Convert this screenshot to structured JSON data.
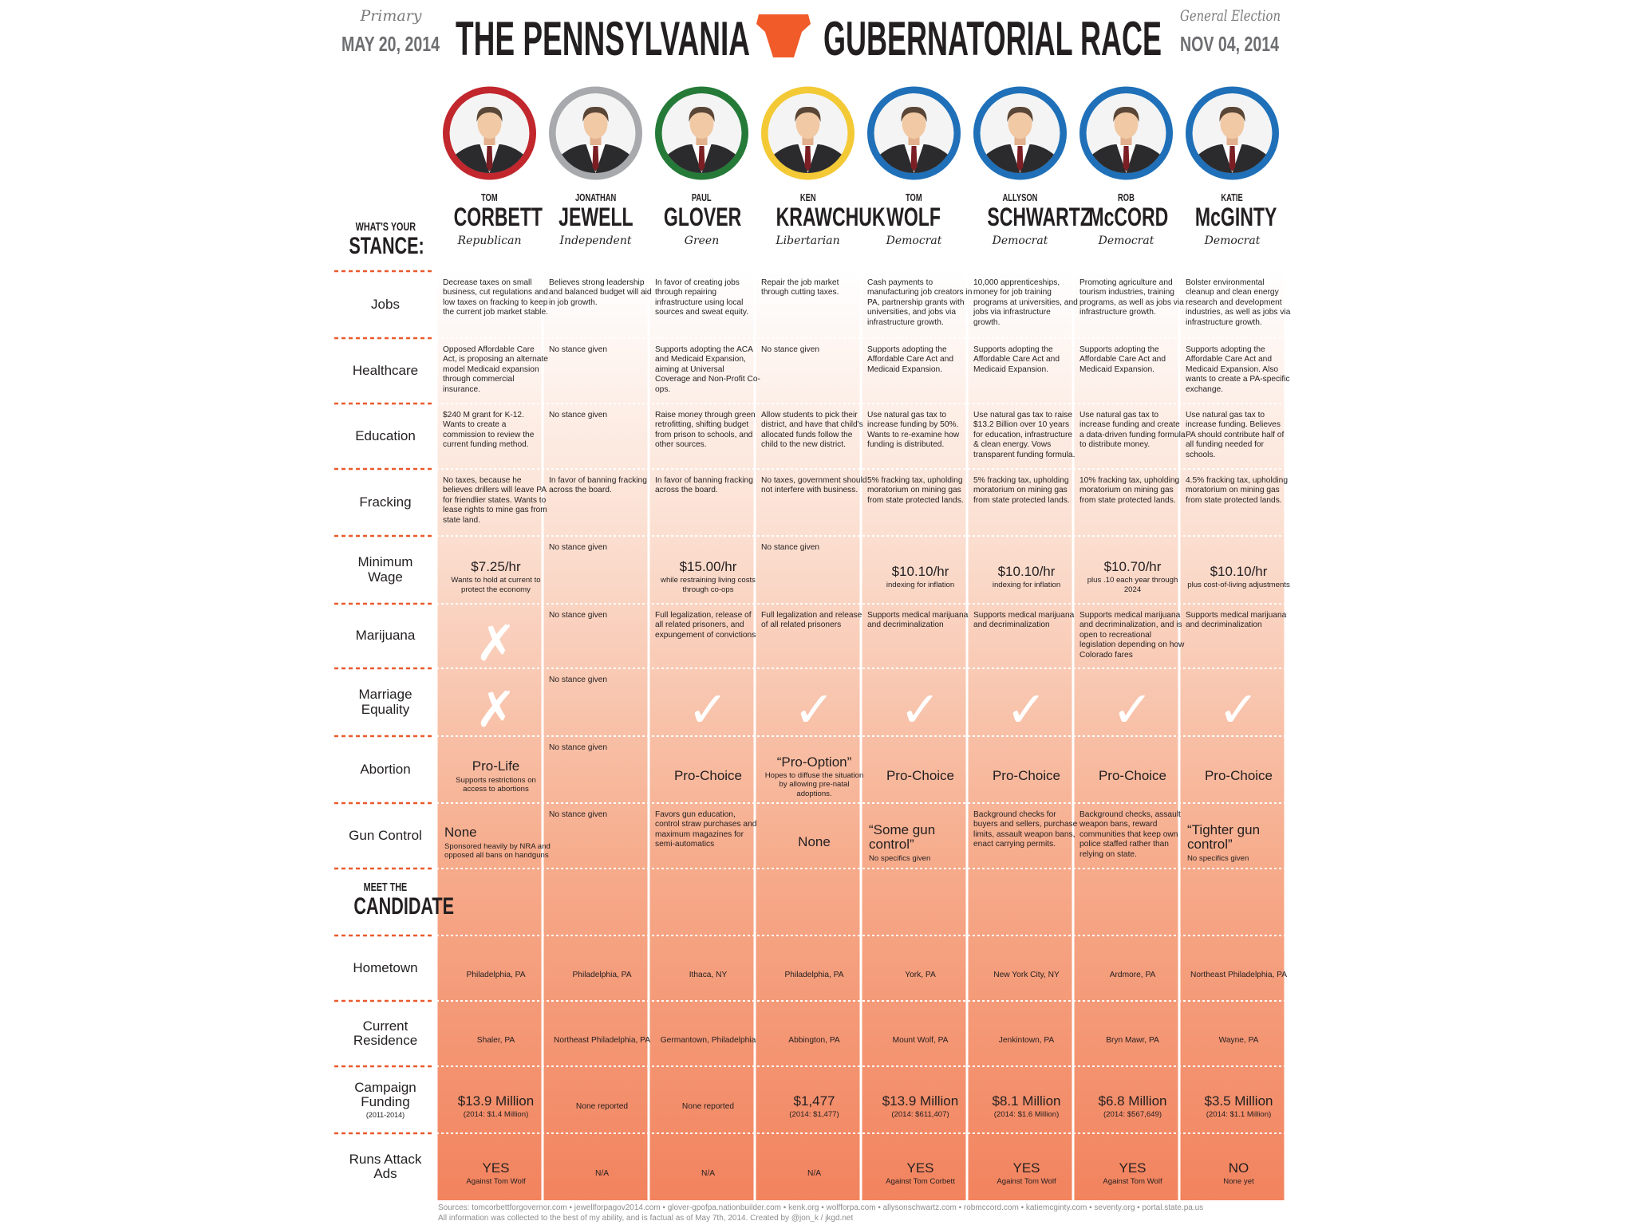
{
  "header": {
    "primary_label": "Primary",
    "primary_date": "MAY 20, 2014",
    "title_left": "THE PENNSYLVANIA",
    "title_right": "GUBERNATORIAL RACE",
    "general_label": "General Election",
    "general_date": "NOV 04, 2014"
  },
  "candidates": [
    {
      "first": "TOM",
      "last": "CORBETT",
      "party": "Republican",
      "color": "#c1272d"
    },
    {
      "first": "JONATHAN",
      "last": "JEWELL",
      "party": "Independent",
      "color": "#a7a9ac"
    },
    {
      "first": "PAUL",
      "last": "GLOVER",
      "party": "Green",
      "color": "#257a38"
    },
    {
      "first": "KEN",
      "last": "KRAWCHUK",
      "party": "Libertarian",
      "color": "#f3c935"
    },
    {
      "first": "TOM",
      "last": "WOLF",
      "party": "Democrat",
      "color": "#1f70b8"
    },
    {
      "first": "ALLYSON",
      "last": "SCHWARTZ",
      "party": "Democrat",
      "color": "#1f70b8"
    },
    {
      "first": "ROB",
      "last": "McCORD",
      "party": "Democrat",
      "color": "#1f70b8"
    },
    {
      "first": "KATIE",
      "last": "McGINTY",
      "party": "Democrat",
      "color": "#1f70b8"
    }
  ],
  "stance": {
    "heading": [
      "WHAT'S YOUR",
      "STANCE:"
    ],
    "rows": [
      {
        "label": "Jobs",
        "cells": [
          {
            "text": "Decrease taxes on small business, cut regulations and low taxes on fracking to keep the current job market stable."
          },
          {
            "text": "Believes strong leadership and balanced budget will aid in job growth."
          },
          {
            "text": "In favor of creating jobs through repairing infrastructure using local sources and sweat equity."
          },
          {
            "text": "Repair the job market through cutting taxes."
          },
          {
            "text": "Cash payments to manufacturing job creators in PA, partnership grants with universities, and jobs via infrastructure growth."
          },
          {
            "text": "10,000 apprenticeships, money for job training programs at universities, and jobs via infrastructure growth."
          },
          {
            "text": "Promoting agriculture and tourism industries, training programs, as well as jobs via infrastructure growth."
          },
          {
            "text": "Bolster environmental cleanup and clean energy research and development industries, as well as jobs via infrastructure growth."
          }
        ]
      },
      {
        "label": "Healthcare",
        "cells": [
          {
            "text": "Opposed Affordable Care Act, is proposing an alternate model Medicaid expansion through commercial insurance."
          },
          {
            "text": "No stance given"
          },
          {
            "text": "Supports adopting the ACA and Medicaid Expansion, aiming at Universal Coverage and Non-Profit Co-ops."
          },
          {
            "text": "No stance given"
          },
          {
            "text": "Supports adopting the Affordable Care Act and Medicaid Expansion."
          },
          {
            "text": "Supports adopting the Affordable Care Act and Medicaid Expansion."
          },
          {
            "text": "Supports adopting the Affordable Care Act and Medicaid Expansion."
          },
          {
            "text": "Supports adopting the Affordable Care Act and Medicaid Expansion. Also wants to create a PA-specific exchange."
          }
        ]
      },
      {
        "label": "Education",
        "cells": [
          {
            "text": "$240 M grant for K-12. Wants to create a commission to review the current funding method."
          },
          {
            "text": "No stance given"
          },
          {
            "text": "Raise money through green retrofitting, shifting budget from prison to schools, and other sources."
          },
          {
            "text": "Allow students to pick their district, and have that child's allocated funds follow the child to the new district."
          },
          {
            "text": "Use natural gas tax to increase funding by 50%. Wants to re-examine how funding is distributed."
          },
          {
            "text": "Use natural gas tax to raise $13.2 Billion over 10 years for education, infrastructure & clean energy. Vows transparent funding formula."
          },
          {
            "text": "Use natural gas tax to increase funding and create a data-driven funding formula to distribute money."
          },
          {
            "text": "Use natural gas tax to increase funding. Believes PA should contribute half of all funding needed for schools."
          }
        ]
      },
      {
        "label": "Fracking",
        "cells": [
          {
            "text": "No taxes, because he believes drillers will leave PA for friendlier states. Wants to lease rights to mine gas from state land."
          },
          {
            "text": "In favor of banning fracking across the board."
          },
          {
            "text": "In favor of banning fracking across the board."
          },
          {
            "text": "No taxes, government should not interfere with business."
          },
          {
            "text": "5% fracking tax, upholding moratorium on mining gas from state protected lands."
          },
          {
            "text": "5% fracking tax, upholding moratorium on mining gas from state protected lands."
          },
          {
            "text": "10% fracking tax, upholding moratorium on mining gas from state protected lands."
          },
          {
            "text": "4.5% fracking tax, upholding moratorium on mining gas from state protected lands."
          }
        ]
      },
      {
        "label": "Minimum Wage",
        "cells": [
          {
            "big": "$7.25/hr",
            "text": "Wants to hold at current to protect the economy"
          },
          {
            "text": "No stance given"
          },
          {
            "big": "$15.00/hr",
            "text": "while restraining living costs through co-ops"
          },
          {
            "text": "No stance given"
          },
          {
            "big": "$10.10/hr",
            "text": "indexing for inflation"
          },
          {
            "big": "$10.10/hr",
            "text": "indexing for inflation"
          },
          {
            "big": "$10.70/hr",
            "text": "plus .10 each year through 2024"
          },
          {
            "big": "$10.10/hr",
            "text": "plus cost-of-living adjustments"
          }
        ]
      },
      {
        "label": "Marijuana",
        "cells": [
          {
            "mark": "✗"
          },
          {
            "text": "No stance given"
          },
          {
            "text": "Full legalization, release of all related prisoners, and expungement of convictions"
          },
          {
            "text": "Full legalization and release of all related prisoners"
          },
          {
            "text": "Supports medical marijuana and decriminalization"
          },
          {
            "text": "Supports medical marijuana and decriminalization"
          },
          {
            "text": "Supports medical marijuana and decriminalization, and is open to recreational legislation depending on how Colorado fares"
          },
          {
            "text": "Supports medical marijuana and decriminalization"
          }
        ]
      },
      {
        "label": "Marriage Equality",
        "cells": [
          {
            "mark": "✗"
          },
          {
            "text": "No stance given"
          },
          {
            "mark": "✓"
          },
          {
            "mark": "✓"
          },
          {
            "mark": "✓"
          },
          {
            "mark": "✓"
          },
          {
            "mark": "✓"
          },
          {
            "mark": "✓"
          }
        ]
      },
      {
        "label": "Abortion",
        "cells": [
          {
            "big": "Pro-Life",
            "text": "Supports restrictions on access to abortions"
          },
          {
            "text": "No stance given"
          },
          {
            "big": "Pro-Choice"
          },
          {
            "big": "“Pro-Option”",
            "text": "Hopes to diffuse the situation by allowing pre-natal adoptions."
          },
          {
            "big": "Pro-Choice"
          },
          {
            "big": "Pro-Choice"
          },
          {
            "big": "Pro-Choice"
          },
          {
            "big": "Pro-Choice"
          }
        ]
      },
      {
        "label": "Gun Control",
        "cells": [
          {
            "big": "None",
            "text": "Sponsored heavily by NRA and opposed all bans on handguns",
            "align": "left"
          },
          {
            "text": "No stance given"
          },
          {
            "text": "Favors gun education, control straw purchases and maximum magazines for semi-automatics"
          },
          {
            "big": "None"
          },
          {
            "big": "“Some gun control”",
            "text": "No specifics given",
            "align": "left"
          },
          {
            "text": "Background checks for buyers and sellers, purchase limits, assault weapon bans, enact carrying permits."
          },
          {
            "text": "Background checks, assault weapon bans, reward communities that keep own police staffed rather than relying on state."
          },
          {
            "big": "“Tighter gun control”",
            "text": "No specifics given",
            "align": "left"
          }
        ]
      }
    ]
  },
  "meet": {
    "heading": [
      "MEET THE",
      "CANDIDATE"
    ],
    "rows": [
      {
        "label": "Hometown",
        "cells": [
          {
            "text": "Philadelphia, PA"
          },
          {
            "text": "Philadelphia, PA"
          },
          {
            "text": "Ithaca, NY"
          },
          {
            "text": "Philadelphia, PA"
          },
          {
            "text": "York, PA"
          },
          {
            "text": "New York City, NY"
          },
          {
            "text": "Ardmore, PA"
          },
          {
            "text": "Northeast Philadelphia, PA"
          }
        ]
      },
      {
        "label": "Current Residence",
        "cells": [
          {
            "text": "Shaler, PA"
          },
          {
            "text": "Northeast Philadelphia, PA"
          },
          {
            "text": "Germantown, Philadelphia"
          },
          {
            "text": "Abbington, PA"
          },
          {
            "text": "Mount Wolf, PA"
          },
          {
            "text": "Jenkintown, PA"
          },
          {
            "text": "Bryn Mawr, PA"
          },
          {
            "text": "Wayne, PA"
          }
        ]
      },
      {
        "label": "Campaign Funding",
        "note": "(2011-2014)",
        "cells": [
          {
            "big": "$13.9 Million",
            "text": "(2014: $1.4 Million)"
          },
          {
            "text": "None reported"
          },
          {
            "text": "None reported"
          },
          {
            "big": "$1,477",
            "text": "(2014: $1,477)"
          },
          {
            "big": "$13.9 Million",
            "text": "(2014: $611,407)"
          },
          {
            "big": "$8.1 Million",
            "text": "(2014: $1.6 Million)"
          },
          {
            "big": "$6.8 Million",
            "text": "(2014: $567,649)"
          },
          {
            "big": "$3.5 Million",
            "text": "(2014: $1.1 Million)"
          }
        ]
      },
      {
        "label": "Runs Attack Ads",
        "cells": [
          {
            "big": "YES",
            "text": "Against Tom Wolf"
          },
          {
            "text": "N/A"
          },
          {
            "text": "N/A"
          },
          {
            "text": "N/A"
          },
          {
            "big": "YES",
            "text": "Against Tom Corbett"
          },
          {
            "big": "YES",
            "text": "Against Tom Wolf"
          },
          {
            "big": "YES",
            "text": "Against Tom Wolf"
          },
          {
            "big": "NO",
            "text": "None yet"
          }
        ]
      }
    ]
  },
  "footer": {
    "sources": "Sources: tomcorbettforgovernor.com • jewellforpagov2014.com • glover-gpofpa.nationbuilder.com • kenk.org • wolfforpa.com • allysonschwartz.com • robmccord.com • katiemcginty.com • seventy.org • portal.state.pa.us",
    "credit": "All information was collected to the best of my ability, and is factual as of May 7th, 2014. Created by @jon_k / jkgd.net"
  }
}
